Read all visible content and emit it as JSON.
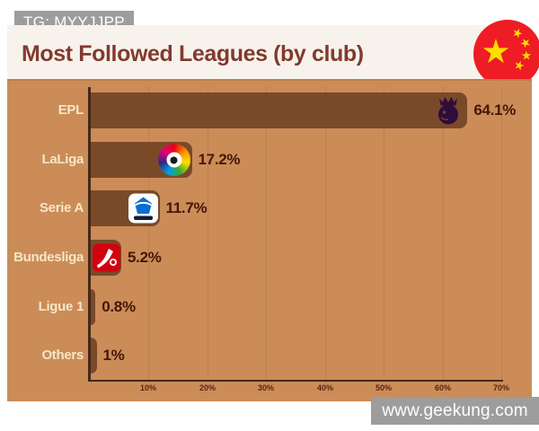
{
  "badges": {
    "top_left": "TG: MYYJJPP",
    "bottom_right": "www.geekung.com"
  },
  "header": {
    "title": "Most Followed Leagues (by club)",
    "flag_icon": "china-flag"
  },
  "chart_data": {
    "type": "bar",
    "orientation": "horizontal",
    "title": "Most Followed Leagues (by club)",
    "categories": [
      "EPL",
      "LaLiga",
      "Serie A",
      "Bundesliga",
      "Ligue 1",
      "Others"
    ],
    "values": [
      64.1,
      17.2,
      11.7,
      5.2,
      0.8,
      1
    ],
    "value_labels": [
      "64.1%",
      "17.2%",
      "11.7%",
      "5.2%",
      "0.8%",
      "1%"
    ],
    "bar_logos": [
      "premier-league-lion",
      "laliga-crest",
      "serie-a-crest",
      "bundesliga-crest",
      null,
      null
    ],
    "xlabel": "",
    "ylabel": "",
    "xlim": [
      0,
      70
    ],
    "x_tick_values": [
      10,
      20,
      30,
      40,
      50,
      60,
      70
    ],
    "x_tick_labels": [
      "10%",
      "20%",
      "30%",
      "40%",
      "50%",
      "60%",
      "70%"
    ],
    "grid": true,
    "legend": false,
    "colors": {
      "plot_background": "#cb8c58",
      "bar": "#7a4a28",
      "axis": "#44281a",
      "category_label": "#f5e7c6",
      "value_label": "#451708",
      "tick_label": "#5b2412",
      "title": "#833a2e",
      "header_bg": "#f7f3ec",
      "badge_bg": "#9d9d9d",
      "badge_text": "#ffffff",
      "flag_red": "#ee1c25",
      "flag_star": "#ffde00"
    }
  }
}
